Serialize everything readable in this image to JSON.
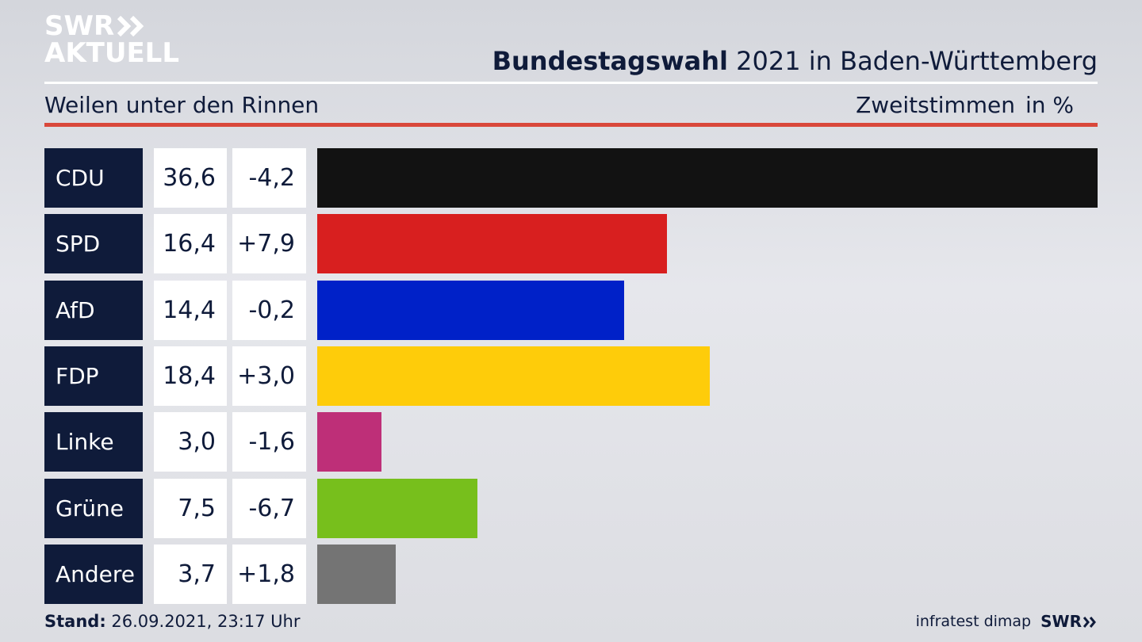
{
  "header": {
    "logo_line1": "SWR",
    "logo_line2": "AKTUELL",
    "title_bold": "Bundestagswahl",
    "title_rest": " 2021 in Baden-Württemberg",
    "subtitle": "Weilen unter den Rinnen",
    "metric": "Zweitstimmen",
    "unit": "in %"
  },
  "footer": {
    "stand_label": "Stand:",
    "stand_value": " 26.09.2021, 23:17 Uhr",
    "source": "infratest dimap",
    "brand": "SWR"
  },
  "colors": {
    "panel": "#0f1b3a",
    "accent_red": "#d9483b"
  },
  "chart_data": {
    "type": "bar",
    "orientation": "horizontal",
    "categories": [
      "CDU",
      "SPD",
      "AfD",
      "FDP",
      "Linke",
      "Grüne",
      "Andere"
    ],
    "values": [
      36.6,
      16.4,
      14.4,
      18.4,
      3.0,
      7.5,
      3.7
    ],
    "value_labels": [
      "36,6",
      "16,4",
      "14,4",
      "18,4",
      "3,0",
      "7,5",
      "3,7"
    ],
    "changes": [
      -4.2,
      7.9,
      -0.2,
      3.0,
      -1.6,
      -6.7,
      1.8
    ],
    "change_labels": [
      "-4,2",
      "+7,9",
      "-0,2",
      "+3,0",
      "-1,6",
      "-6,7",
      "+1,8"
    ],
    "colors": [
      "#121212",
      "#d81f1f",
      "#0021c8",
      "#fecc0a",
      "#be2f78",
      "#77bf1c",
      "#747474"
    ],
    "xlim": [
      0,
      36.6
    ],
    "title": "Bundestagswahl 2021 in Baden-Württemberg",
    "grid": false
  }
}
